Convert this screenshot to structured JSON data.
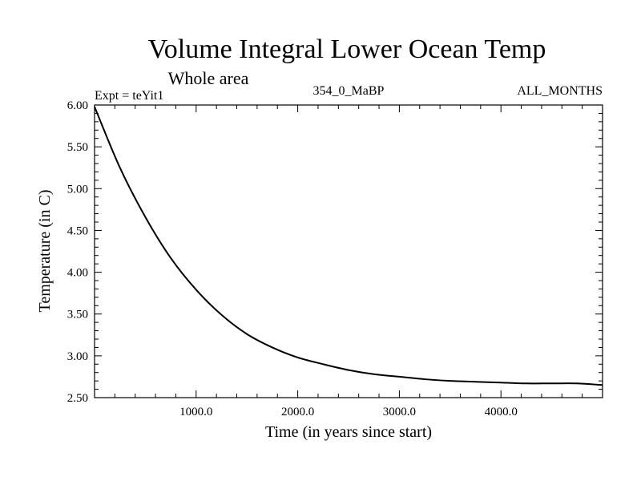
{
  "chart_data": {
    "type": "line",
    "title": "Volume Integral Lower Ocean Temp",
    "subtitle": "Whole area",
    "expt_label": "Expt = teYit1",
    "period_label": "354_0_MaBP",
    "months_label": "ALL_MONTHS",
    "xlabel": "Time (in years since start)",
    "ylabel": "Temperature (in C)",
    "xlim": [
      0,
      5000
    ],
    "ylim": [
      2.5,
      6.0
    ],
    "x_ticks": [
      1000,
      2000,
      3000,
      4000
    ],
    "x_tick_labels": [
      "1000.0",
      "2000.0",
      "3000.0",
      "4000.0"
    ],
    "y_ticks": [
      2.5,
      3.0,
      3.5,
      4.0,
      4.5,
      5.0,
      5.5,
      6.0
    ],
    "y_tick_labels": [
      "2.50",
      "3.00",
      "3.50",
      "4.00",
      "4.50",
      "5.00",
      "5.50",
      "6.00"
    ],
    "grid": false,
    "series": [
      {
        "name": "Temperature",
        "color": "#000000",
        "x": [
          0,
          250,
          500,
          750,
          1000,
          1250,
          1500,
          1750,
          2000,
          2250,
          2500,
          2750,
          3000,
          3250,
          3500,
          3750,
          4000,
          4250,
          4500,
          4750,
          5000
        ],
        "y": [
          5.98,
          5.25,
          4.66,
          4.17,
          3.79,
          3.49,
          3.26,
          3.1,
          2.98,
          2.9,
          2.83,
          2.78,
          2.75,
          2.72,
          2.7,
          2.69,
          2.68,
          2.67,
          2.67,
          2.67,
          2.65
        ]
      }
    ]
  }
}
